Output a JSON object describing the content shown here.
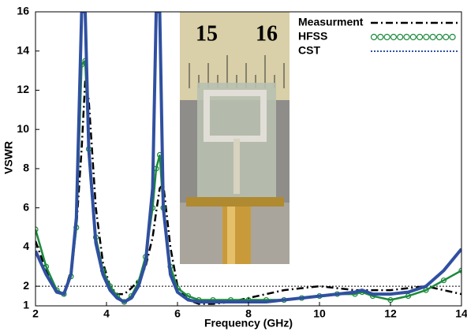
{
  "chart_data": {
    "type": "line",
    "x_label": "Frequency (GHz)",
    "y_label": "VSWR",
    "x": [
      2,
      2.3,
      2.6,
      2.8,
      3.0,
      3.15,
      3.3,
      3.4,
      3.5,
      3.7,
      3.9,
      4.1,
      4.3,
      4.5,
      4.7,
      4.9,
      5.1,
      5.3,
      5.4,
      5.5,
      5.6,
      5.8,
      6.0,
      6.3,
      6.6,
      7,
      7.5,
      8,
      8.5,
      9,
      9.5,
      10,
      10.5,
      11,
      11.2,
      11.5,
      12,
      12.5,
      13,
      13.5,
      14
    ],
    "series": [
      {
        "name": "Measurment",
        "color": "#000000",
        "style": "dashdot",
        "values": [
          4.3,
          2.8,
          1.8,
          1.6,
          2.8,
          5,
          9,
          12.5,
          11.5,
          6,
          3.2,
          2.0,
          1.6,
          1.6,
          1.9,
          2.3,
          3,
          4.5,
          5.8,
          7,
          7.2,
          4,
          2,
          1.3,
          1.1,
          1.1,
          1.2,
          1.4,
          1.6,
          1.8,
          1.9,
          2.0,
          1.9,
          1.8,
          1.8,
          1.8,
          1.8,
          1.9,
          2.0,
          1.8,
          1.6
        ]
      },
      {
        "name": "HFSS",
        "color": "#1a8a3a",
        "style": "circles",
        "values": [
          4.9,
          3.0,
          1.8,
          1.6,
          2.5,
          5,
          13.3,
          13.5,
          9,
          4.5,
          2.8,
          2.0,
          1.5,
          1.2,
          1.5,
          2.2,
          3.5,
          6,
          8,
          8.7,
          6,
          3,
          1.9,
          1.5,
          1.3,
          1.3,
          1.3,
          1.3,
          1.3,
          1.3,
          1.4,
          1.5,
          1.6,
          1.6,
          1.7,
          1.5,
          1.3,
          1.5,
          1.8,
          2.3,
          2.8
        ]
      },
      {
        "name": "CST",
        "color": "#3050a0",
        "style": "dotted",
        "values": [
          3.8,
          2.6,
          1.7,
          1.6,
          2.6,
          5.5,
          16,
          16,
          9,
          4.2,
          2.6,
          1.8,
          1.4,
          1.2,
          1.4,
          2,
          3.2,
          7,
          16,
          16,
          6,
          2.6,
          1.7,
          1.3,
          1.2,
          1.2,
          1.2,
          1.2,
          1.2,
          1.3,
          1.4,
          1.5,
          1.6,
          1.7,
          1.8,
          1.6,
          1.6,
          1.7,
          2.0,
          2.8,
          3.9
        ]
      }
    ],
    "xlim": [
      2,
      14
    ],
    "xticks": [
      2,
      4,
      6,
      8,
      10,
      12,
      14
    ],
    "ylim": [
      1,
      16
    ],
    "yticks": [
      1,
      2,
      4,
      6,
      8,
      10,
      12,
      14,
      16
    ],
    "reference_line": 2,
    "legend": "top-right",
    "inset_labels": [
      "15",
      "16"
    ]
  }
}
